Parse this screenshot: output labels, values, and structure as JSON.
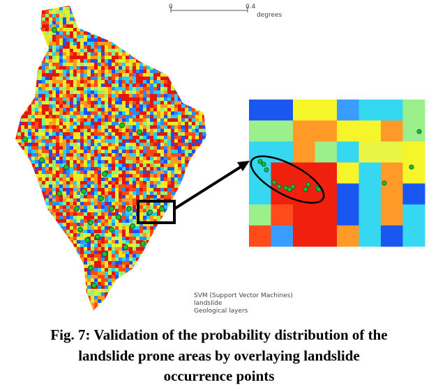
{
  "figure": {
    "scale_bar": {
      "start": "0",
      "end": "0.4",
      "unit": "degrees"
    },
    "legend": [
      "SVM (Support Vector Machines)",
      "landslide",
      "Geological layers"
    ],
    "caption": [
      "Fig. 7: Validation of the probability distribution of the",
      "landslide prone areas by overlaying landslide",
      "occurrence points"
    ]
  }
}
